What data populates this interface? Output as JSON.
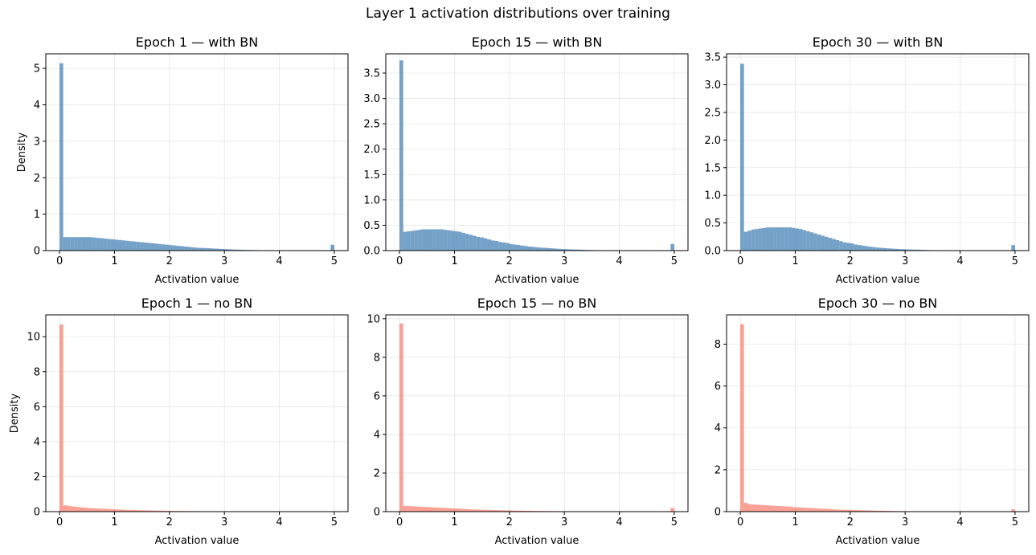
{
  "figure": {
    "suptitle": "Layer 1 activation distributions over training"
  },
  "colors": {
    "with_bn": "#4682b4",
    "no_bn": "#fa8072",
    "grid": "#e6e6e6"
  },
  "chart_data": [
    {
      "type": "histogram",
      "title": "Epoch 1 — with BN",
      "xlabel": "Activation value",
      "ylabel": "Density",
      "xlim": [
        -0.25,
        5.25
      ],
      "ylim": [
        0,
        5.4
      ],
      "xticks": [
        0,
        1,
        2,
        3,
        4,
        5
      ],
      "yticks": [
        0,
        1,
        2,
        3,
        4,
        5
      ],
      "ytick_labels": [
        "0",
        "1",
        "2",
        "3",
        "4",
        "5"
      ],
      "grid": true,
      "color_key": "with_bn",
      "bins": [
        0,
        0.067,
        0.133,
        0.2,
        0.267,
        0.333,
        0.4,
        0.467,
        0.533,
        0.6,
        0.667,
        0.733,
        0.8,
        0.867,
        0.933,
        1,
        1.067,
        1.133,
        1.2,
        1.267,
        1.333,
        1.4,
        1.467,
        1.533,
        1.6,
        1.667,
        1.733,
        1.8,
        1.867,
        1.933,
        2,
        2.067,
        2.133,
        2.2,
        2.267,
        2.333,
        2.4,
        2.467,
        2.533,
        2.6,
        2.667,
        2.733,
        2.8,
        2.867,
        2.933,
        3,
        3.067,
        3.133,
        3.2,
        3.267,
        3.333,
        3.4,
        3.467,
        3.533,
        3.6,
        3.667,
        3.733,
        3.8,
        3.867,
        3.933,
        4,
        4.067,
        4.133,
        4.2,
        4.267,
        4.333,
        4.4,
        4.467,
        4.533,
        4.6,
        4.667,
        4.733,
        4.8,
        4.867,
        4.933,
        5
      ],
      "values": [
        5.14,
        0.37,
        0.37,
        0.37,
        0.37,
        0.37,
        0.37,
        0.37,
        0.37,
        0.36,
        0.35,
        0.34,
        0.33,
        0.32,
        0.31,
        0.3,
        0.29,
        0.28,
        0.27,
        0.26,
        0.25,
        0.24,
        0.23,
        0.22,
        0.21,
        0.2,
        0.19,
        0.18,
        0.17,
        0.16,
        0.15,
        0.14,
        0.13,
        0.12,
        0.11,
        0.1,
        0.09,
        0.08,
        0.075,
        0.07,
        0.065,
        0.06,
        0.055,
        0.05,
        0.045,
        0.04,
        0.035,
        0.03,
        0.027,
        0.024,
        0.021,
        0.018,
        0.016,
        0.014,
        0.012,
        0.01,
        0.009,
        0.008,
        0.007,
        0.006,
        0.005,
        0.004,
        0.004,
        0.003,
        0.003,
        0.002,
        0.002,
        0.002,
        0.001,
        0.001,
        0.001,
        0.001,
        0.001,
        0.001,
        0.16
      ]
    },
    {
      "type": "histogram",
      "title": "Epoch 15 — with BN",
      "xlabel": "Activation value",
      "ylabel": "",
      "xlim": [
        -0.25,
        5.25
      ],
      "ylim": [
        0,
        3.88
      ],
      "xticks": [
        0,
        1,
        2,
        3,
        4,
        5
      ],
      "yticks": [
        0,
        0.5,
        1,
        1.5,
        2,
        2.5,
        3,
        3.5
      ],
      "ytick_labels": [
        "0.0",
        "0.5",
        "1.0",
        "1.5",
        "2.0",
        "2.5",
        "3.0",
        "3.5"
      ],
      "grid": true,
      "color_key": "with_bn",
      "bins": [
        0,
        0.067,
        0.133,
        0.2,
        0.267,
        0.333,
        0.4,
        0.467,
        0.533,
        0.6,
        0.667,
        0.733,
        0.8,
        0.867,
        0.933,
        1,
        1.067,
        1.133,
        1.2,
        1.267,
        1.333,
        1.4,
        1.467,
        1.533,
        1.6,
        1.667,
        1.733,
        1.8,
        1.867,
        1.933,
        2,
        2.067,
        2.133,
        2.2,
        2.267,
        2.333,
        2.4,
        2.467,
        2.533,
        2.6,
        2.667,
        2.733,
        2.8,
        2.867,
        2.933,
        3,
        3.067,
        3.133,
        3.2,
        3.267,
        3.333,
        3.4,
        3.467,
        3.533,
        3.6,
        3.667,
        3.733,
        3.8,
        3.867,
        3.933,
        4,
        4.067,
        4.133,
        4.2,
        4.267,
        4.333,
        4.4,
        4.467,
        4.533,
        4.6,
        4.667,
        4.733,
        4.8,
        4.867,
        4.933,
        5
      ],
      "values": [
        3.75,
        0.37,
        0.38,
        0.39,
        0.4,
        0.41,
        0.42,
        0.42,
        0.42,
        0.42,
        0.42,
        0.42,
        0.41,
        0.4,
        0.39,
        0.38,
        0.37,
        0.35,
        0.33,
        0.31,
        0.29,
        0.27,
        0.26,
        0.24,
        0.22,
        0.2,
        0.19,
        0.17,
        0.16,
        0.15,
        0.13,
        0.12,
        0.11,
        0.1,
        0.09,
        0.08,
        0.075,
        0.065,
        0.06,
        0.055,
        0.05,
        0.045,
        0.04,
        0.035,
        0.03,
        0.028,
        0.025,
        0.022,
        0.02,
        0.018,
        0.015,
        0.013,
        0.011,
        0.01,
        0.009,
        0.008,
        0.007,
        0.006,
        0.005,
        0.004,
        0.004,
        0.003,
        0.003,
        0.002,
        0.002,
        0.002,
        0.001,
        0.001,
        0.001,
        0.001,
        0.001,
        0.001,
        0.001,
        0.001,
        0.13
      ]
    },
    {
      "type": "histogram",
      "title": "Epoch 30 — with BN",
      "xlabel": "Activation value",
      "ylabel": "",
      "xlim": [
        -0.25,
        5.25
      ],
      "ylim": [
        0,
        3.56
      ],
      "xticks": [
        0,
        1,
        2,
        3,
        4,
        5
      ],
      "yticks": [
        0,
        0.5,
        1,
        1.5,
        2,
        2.5,
        3,
        3.5
      ],
      "ytick_labels": [
        "0.0",
        "0.5",
        "1.0",
        "1.5",
        "2.0",
        "2.5",
        "3.0",
        "3.5"
      ],
      "grid": true,
      "color_key": "with_bn",
      "bins": [
        0,
        0.067,
        0.133,
        0.2,
        0.267,
        0.333,
        0.4,
        0.467,
        0.533,
        0.6,
        0.667,
        0.733,
        0.8,
        0.867,
        0.933,
        1,
        1.067,
        1.133,
        1.2,
        1.267,
        1.333,
        1.4,
        1.467,
        1.533,
        1.6,
        1.667,
        1.733,
        1.8,
        1.867,
        1.933,
        2,
        2.067,
        2.133,
        2.2,
        2.267,
        2.333,
        2.4,
        2.467,
        2.533,
        2.6,
        2.667,
        2.733,
        2.8,
        2.867,
        2.933,
        3,
        3.067,
        3.133,
        3.2,
        3.267,
        3.333,
        3.4,
        3.467,
        3.533,
        3.6,
        3.667,
        3.733,
        3.8,
        3.867,
        3.933,
        4,
        4.067,
        4.133,
        4.2,
        4.267,
        4.333,
        4.4,
        4.467,
        4.533,
        4.6,
        4.667,
        4.733,
        4.8,
        4.867,
        4.933,
        5
      ],
      "values": [
        3.38,
        0.34,
        0.36,
        0.38,
        0.39,
        0.4,
        0.41,
        0.42,
        0.42,
        0.42,
        0.42,
        0.42,
        0.42,
        0.42,
        0.41,
        0.4,
        0.39,
        0.37,
        0.35,
        0.33,
        0.31,
        0.29,
        0.27,
        0.25,
        0.23,
        0.21,
        0.19,
        0.17,
        0.15,
        0.14,
        0.13,
        0.11,
        0.1,
        0.09,
        0.08,
        0.07,
        0.065,
        0.055,
        0.05,
        0.045,
        0.04,
        0.035,
        0.032,
        0.028,
        0.025,
        0.022,
        0.02,
        0.018,
        0.016,
        0.014,
        0.012,
        0.01,
        0.009,
        0.008,
        0.007,
        0.006,
        0.005,
        0.004,
        0.004,
        0.003,
        0.003,
        0.002,
        0.002,
        0.002,
        0.001,
        0.001,
        0.001,
        0.001,
        0.001,
        0.001,
        0.001,
        0.001,
        0.001,
        0.001,
        0.1
      ]
    },
    {
      "type": "histogram",
      "title": "Epoch 1 — no BN",
      "xlabel": "Activation value",
      "ylabel": "Density",
      "xlim": [
        -0.25,
        5.25
      ],
      "ylim": [
        0,
        11.25
      ],
      "xticks": [
        0,
        1,
        2,
        3,
        4,
        5
      ],
      "yticks": [
        0,
        2,
        4,
        6,
        8,
        10
      ],
      "ytick_labels": [
        "0",
        "2",
        "4",
        "6",
        "8",
        "10"
      ],
      "grid": true,
      "color_key": "no_bn",
      "bins": [
        0,
        0.067,
        0.133,
        0.2,
        0.267,
        0.333,
        0.4,
        0.467,
        0.533,
        0.6,
        0.667,
        0.733,
        0.8,
        0.867,
        0.933,
        1,
        1.067,
        1.133,
        1.2,
        1.267,
        1.333,
        1.4,
        1.467,
        1.533,
        1.6,
        1.667,
        1.733,
        1.8,
        1.867,
        1.933,
        2,
        2.067,
        2.133,
        2.2,
        2.267,
        2.333,
        2.4,
        2.467,
        2.533,
        2.6,
        2.667,
        2.733,
        2.8,
        2.867,
        2.933,
        3,
        3.067,
        3.133,
        3.2,
        3.267,
        3.333,
        3.4,
        3.467,
        3.533,
        3.6,
        3.667,
        3.733,
        3.8,
        3.867,
        3.933,
        4,
        4.067,
        4.133,
        4.2,
        4.267,
        4.333,
        4.4,
        4.467,
        4.533,
        4.6,
        4.667,
        4.733,
        4.8,
        4.867,
        4.933,
        5
      ],
      "values": [
        10.7,
        0.36,
        0.33,
        0.3,
        0.28,
        0.26,
        0.24,
        0.22,
        0.2,
        0.19,
        0.18,
        0.17,
        0.16,
        0.15,
        0.14,
        0.13,
        0.12,
        0.11,
        0.1,
        0.095,
        0.09,
        0.085,
        0.08,
        0.075,
        0.07,
        0.065,
        0.06,
        0.055,
        0.05,
        0.045,
        0.04,
        0.038,
        0.036,
        0.034,
        0.032,
        0.03,
        0.028,
        0.026,
        0.024,
        0.022,
        0.02,
        0.019,
        0.018,
        0.017,
        0.016,
        0.015,
        0.014,
        0.013,
        0.012,
        0.011,
        0.01,
        0.009,
        0.008,
        0.007,
        0.006,
        0.005,
        0.004,
        0.004,
        0.003,
        0.003,
        0.002,
        0.002,
        0.002,
        0.001,
        0.001,
        0.001,
        0.001,
        0.001,
        0.001,
        0.001,
        0.001,
        0.001,
        0.001,
        0.001,
        0.02
      ]
    },
    {
      "type": "histogram",
      "title": "Epoch 15 — no BN",
      "xlabel": "Activation value",
      "ylabel": "",
      "xlim": [
        -0.25,
        5.25
      ],
      "ylim": [
        0,
        10.2
      ],
      "xticks": [
        0,
        1,
        2,
        3,
        4,
        5
      ],
      "yticks": [
        0,
        2,
        4,
        6,
        8,
        10
      ],
      "ytick_labels": [
        "0",
        "2",
        "4",
        "6",
        "8",
        "10"
      ],
      "grid": true,
      "color_key": "no_bn",
      "bins": [
        0,
        0.067,
        0.133,
        0.2,
        0.267,
        0.333,
        0.4,
        0.467,
        0.533,
        0.6,
        0.667,
        0.733,
        0.8,
        0.867,
        0.933,
        1,
        1.067,
        1.133,
        1.2,
        1.267,
        1.333,
        1.4,
        1.467,
        1.533,
        1.6,
        1.667,
        1.733,
        1.8,
        1.867,
        1.933,
        2,
        2.067,
        2.133,
        2.2,
        2.267,
        2.333,
        2.4,
        2.467,
        2.533,
        2.6,
        2.667,
        2.733,
        2.8,
        2.867,
        2.933,
        3,
        3.067,
        3.133,
        3.2,
        3.267,
        3.333,
        3.4,
        3.467,
        3.533,
        3.6,
        3.667,
        3.733,
        3.8,
        3.867,
        3.933,
        4,
        4.067,
        4.133,
        4.2,
        4.267,
        4.333,
        4.4,
        4.467,
        4.533,
        4.6,
        4.667,
        4.733,
        4.8,
        4.867,
        4.933,
        5
      ],
      "values": [
        9.75,
        0.3,
        0.29,
        0.28,
        0.27,
        0.26,
        0.25,
        0.24,
        0.23,
        0.22,
        0.21,
        0.2,
        0.19,
        0.18,
        0.17,
        0.16,
        0.15,
        0.14,
        0.13,
        0.12,
        0.11,
        0.105,
        0.1,
        0.095,
        0.09,
        0.085,
        0.08,
        0.075,
        0.07,
        0.065,
        0.06,
        0.055,
        0.05,
        0.047,
        0.044,
        0.041,
        0.038,
        0.035,
        0.032,
        0.03,
        0.028,
        0.026,
        0.024,
        0.022,
        0.02,
        0.019,
        0.018,
        0.017,
        0.016,
        0.015,
        0.014,
        0.013,
        0.012,
        0.011,
        0.01,
        0.009,
        0.008,
        0.007,
        0.006,
        0.005,
        0.005,
        0.004,
        0.004,
        0.003,
        0.003,
        0.002,
        0.002,
        0.002,
        0.001,
        0.001,
        0.001,
        0.001,
        0.001,
        0.001,
        0.19
      ]
    },
    {
      "type": "histogram",
      "title": "Epoch 30 — no BN",
      "xlabel": "Activation value",
      "ylabel": "",
      "xlim": [
        -0.25,
        5.25
      ],
      "ylim": [
        0,
        9.4
      ],
      "xticks": [
        0,
        1,
        2,
        3,
        4,
        5
      ],
      "yticks": [
        0,
        2,
        4,
        6,
        8
      ],
      "ytick_labels": [
        "0",
        "2",
        "4",
        "6",
        "8"
      ],
      "grid": true,
      "color_key": "no_bn",
      "bins": [
        0,
        0.067,
        0.133,
        0.2,
        0.267,
        0.333,
        0.4,
        0.467,
        0.533,
        0.6,
        0.667,
        0.733,
        0.8,
        0.867,
        0.933,
        1,
        1.067,
        1.133,
        1.2,
        1.267,
        1.333,
        1.4,
        1.467,
        1.533,
        1.6,
        1.667,
        1.733,
        1.8,
        1.867,
        1.933,
        2,
        2.067,
        2.133,
        2.2,
        2.267,
        2.333,
        2.4,
        2.467,
        2.533,
        2.6,
        2.667,
        2.733,
        2.8,
        2.867,
        2.933,
        3,
        3.067,
        3.133,
        3.2,
        3.267,
        3.333,
        3.4,
        3.467,
        3.533,
        3.6,
        3.667,
        3.733,
        3.8,
        3.867,
        3.933,
        4,
        4.067,
        4.133,
        4.2,
        4.267,
        4.333,
        4.4,
        4.467,
        4.533,
        4.6,
        4.667,
        4.733,
        4.8,
        4.867,
        4.933,
        5
      ],
      "values": [
        8.95,
        0.42,
        0.36,
        0.34,
        0.33,
        0.32,
        0.31,
        0.3,
        0.29,
        0.28,
        0.27,
        0.26,
        0.25,
        0.24,
        0.22,
        0.21,
        0.2,
        0.19,
        0.18,
        0.17,
        0.16,
        0.15,
        0.14,
        0.13,
        0.12,
        0.11,
        0.1,
        0.095,
        0.09,
        0.085,
        0.08,
        0.075,
        0.07,
        0.065,
        0.06,
        0.055,
        0.05,
        0.045,
        0.04,
        0.037,
        0.034,
        0.031,
        0.028,
        0.025,
        0.022,
        0.02,
        0.018,
        0.016,
        0.015,
        0.014,
        0.013,
        0.012,
        0.011,
        0.01,
        0.009,
        0.008,
        0.007,
        0.006,
        0.005,
        0.004,
        0.004,
        0.003,
        0.003,
        0.002,
        0.002,
        0.002,
        0.001,
        0.001,
        0.001,
        0.001,
        0.001,
        0.001,
        0.001,
        0.001,
        0.11
      ]
    }
  ]
}
